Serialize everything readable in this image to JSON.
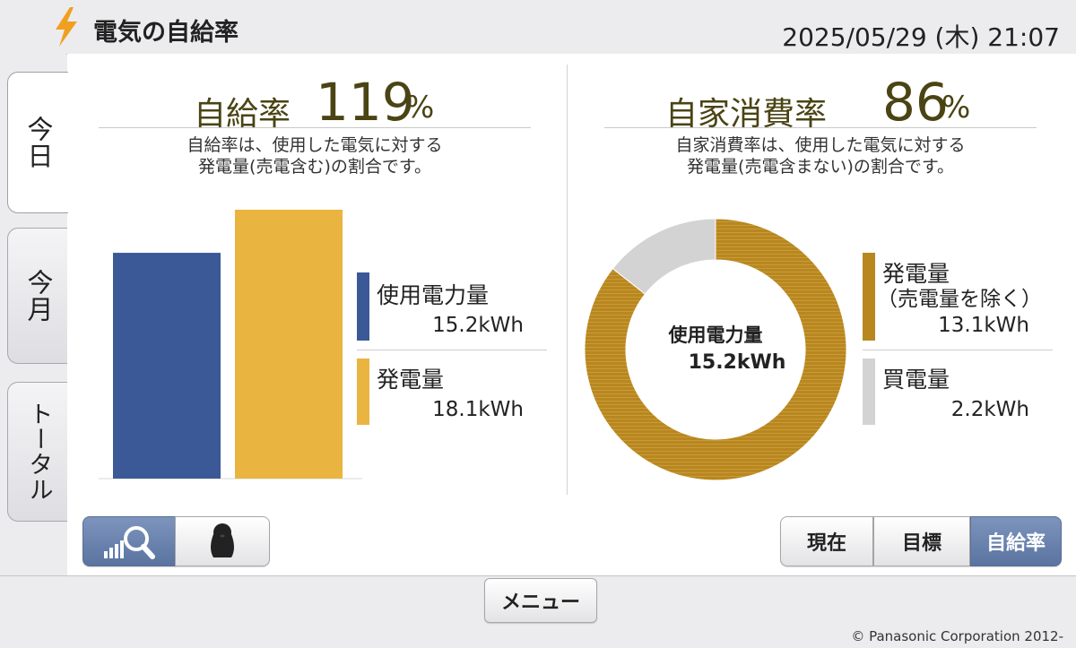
{
  "header": {
    "title": "電気の自給率",
    "datetime": "2025/05/29 (木) 21:07",
    "icon": "lightning-bolt-icon",
    "icon_color": "#f0a020"
  },
  "tabs": [
    {
      "label": "今日",
      "active": true
    },
    {
      "label": "今月",
      "active": false
    },
    {
      "label": "トータル",
      "active": false
    }
  ],
  "self_sufficiency": {
    "label": "自給率",
    "value": "119",
    "unit": "%",
    "description_line1": "自給率は、使用した電気に対する",
    "description_line2": "発電量(売電含む)の割合です。",
    "legend": [
      {
        "label": "使用電力量",
        "value": "15.2kWh",
        "color": "#3b5997"
      },
      {
        "label": "発電量",
        "value": "18.1kWh",
        "color": "#e9b440"
      }
    ]
  },
  "self_consumption": {
    "label": "自家消費率",
    "value": "86",
    "unit": "%",
    "description_line1": "自家消費率は、使用した電気に対する",
    "description_line2": "発電量(売電含まない)の割合です。",
    "center_label": "使用電力量",
    "center_value": "15.2kWh",
    "legend": [
      {
        "label": "発電量",
        "sublabel": "（売電量を除く）",
        "value": "13.1kWh",
        "color": "#b8871f"
      },
      {
        "label": "買電量",
        "value": "2.2kWh",
        "color": "#d3d3d3"
      }
    ]
  },
  "chart_data": [
    {
      "type": "bar",
      "categories": [
        "使用電力量",
        "発電量"
      ],
      "values": [
        15.2,
        18.1
      ],
      "colors": [
        "#3b5997",
        "#e9b440"
      ],
      "title": "",
      "xlabel": "",
      "ylabel": "",
      "ylim": [
        0,
        18.1
      ]
    },
    {
      "type": "pie",
      "donut": true,
      "categories": [
        "発電量（売電量を除く）",
        "買電量"
      ],
      "values": [
        13.1,
        2.2
      ],
      "colors": [
        "#b8871f",
        "#d3d3d3"
      ],
      "title": ""
    }
  ],
  "bottom_left_buttons": [
    {
      "icon": "bar-magnifier-icon",
      "selected": true
    },
    {
      "icon": "penguin-icon",
      "selected": false
    }
  ],
  "view_buttons": [
    {
      "label": "現在",
      "selected": false
    },
    {
      "label": "目標",
      "selected": false
    },
    {
      "label": "自給率",
      "selected": true
    }
  ],
  "footer": {
    "menu_label": "メニュー",
    "copyright": "© Panasonic Corporation 2012-"
  }
}
